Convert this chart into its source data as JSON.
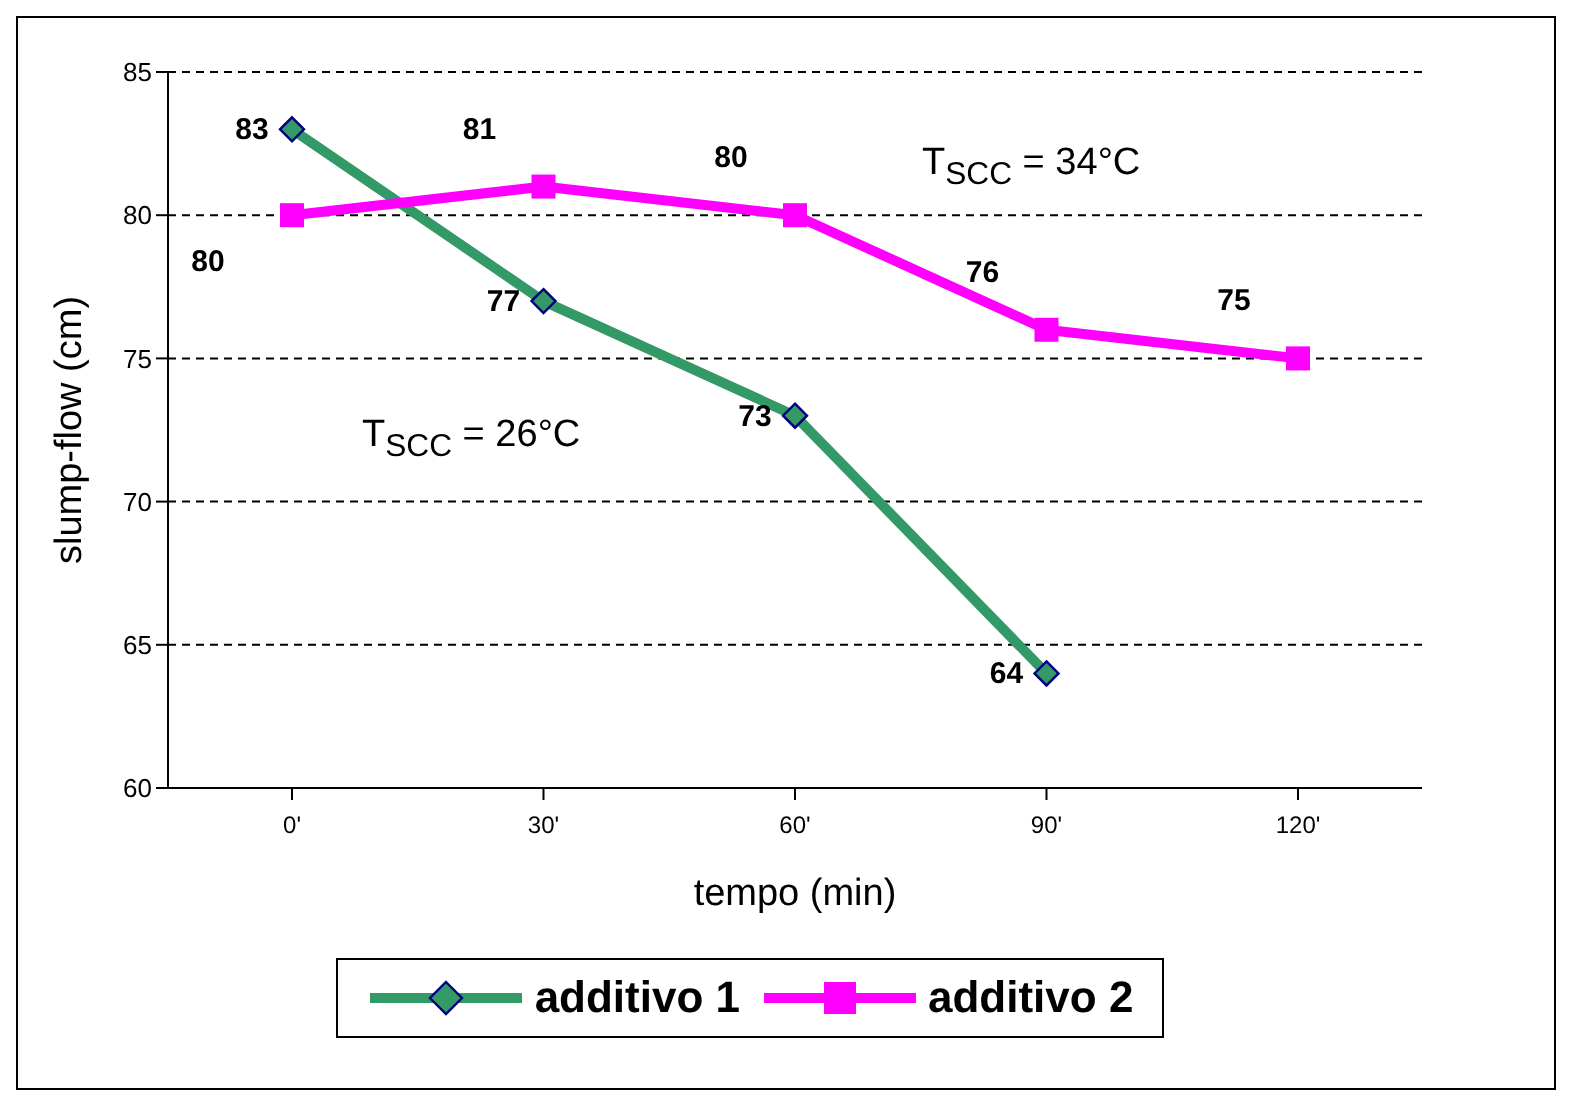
{
  "chart_data": {
    "type": "line",
    "xlabel": "tempo (min)",
    "ylabel": "slump-flow (cm)",
    "categories": [
      "0'",
      "30'",
      "60'",
      "90'",
      "120'"
    ],
    "series": [
      {
        "name": "additivo 1",
        "color": "#339966",
        "marker": "diamond",
        "values": [
          83,
          77,
          73,
          64,
          null
        ]
      },
      {
        "name": "additivo 2",
        "color": "#ff00ff",
        "marker": "square",
        "values": [
          80,
          81,
          80,
          76,
          75
        ]
      }
    ],
    "ylim": [
      60,
      85
    ],
    "yticks": [
      60,
      65,
      70,
      75,
      80,
      85
    ],
    "grid": "y",
    "legend": "bottom",
    "data_labels": true,
    "annotations": [
      "T$_{SCC}$ = 34°C",
      "T$_{SCC}$ = 26°C"
    ]
  }
}
